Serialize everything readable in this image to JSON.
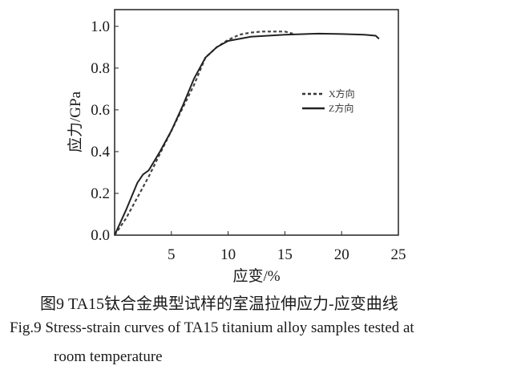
{
  "chart_data": {
    "type": "line",
    "xlabel": "应变/%",
    "ylabel": "应力/GPa",
    "xlim": [
      0,
      25
    ],
    "ylim": [
      0,
      1.08
    ],
    "xticks": [
      5,
      10,
      15,
      20,
      25
    ],
    "yticks": [
      0.0,
      0.2,
      0.4,
      0.6,
      0.8,
      1.0
    ],
    "grid": false,
    "legend_position": "right",
    "series": [
      {
        "name": "X方向",
        "style": "dashed",
        "x": [
          0,
          1,
          2,
          3,
          4,
          5,
          6,
          7,
          8,
          9,
          10,
          11,
          12,
          13,
          14,
          15,
          15.7
        ],
        "y": [
          0,
          0.08,
          0.18,
          0.28,
          0.39,
          0.5,
          0.61,
          0.72,
          0.85,
          0.9,
          0.935,
          0.96,
          0.97,
          0.975,
          0.975,
          0.975,
          0.965
        ]
      },
      {
        "name": "Z方向",
        "style": "solid",
        "x": [
          0,
          1,
          2,
          2.5,
          3,
          4,
          5,
          6,
          7,
          8,
          9,
          10,
          12,
          15,
          18,
          20,
          22,
          23,
          23.3
        ],
        "y": [
          0,
          0.12,
          0.25,
          0.29,
          0.31,
          0.4,
          0.5,
          0.62,
          0.75,
          0.85,
          0.9,
          0.93,
          0.95,
          0.96,
          0.965,
          0.963,
          0.96,
          0.955,
          0.94
        ]
      }
    ]
  },
  "caption": {
    "cn": "图9  TA15钛合金典型试样的室温拉伸应力-应变曲线",
    "en_line1": "Fig.9  Stress-strain curves of TA15 titanium alloy samples tested at",
    "en_line2": "room temperature"
  }
}
